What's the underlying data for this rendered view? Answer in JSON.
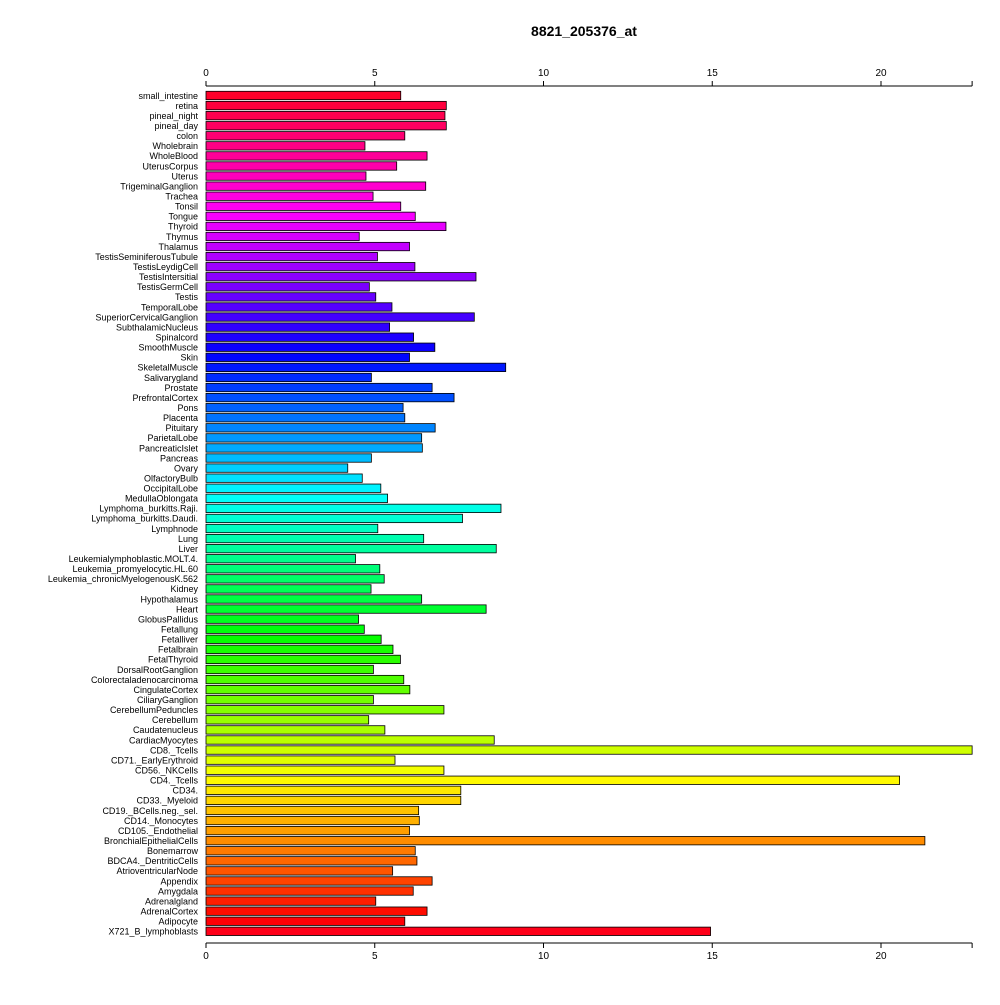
{
  "chart_data": {
    "type": "bar",
    "orientation": "horizontal",
    "title": "8821_205376_at",
    "xlabel": "",
    "ylabel": "",
    "xlim": [
      0,
      22.7
    ],
    "xticks": [
      0,
      5,
      10,
      15,
      20
    ],
    "grid": false,
    "categories": [
      "small_intestine",
      "retina",
      "pineal_night",
      "pineal_day",
      "colon",
      "Wholebrain",
      "WholeBlood",
      "UterusCorpus",
      "Uterus",
      "TrigeminalGanglion",
      "Trachea",
      "Tonsil",
      "Tongue",
      "Thyroid",
      "Thymus",
      "Thalamus",
      "TestisSeminiferousTubule",
      "TestisLeydigCell",
      "TestisIntersitial",
      "TestisGermCell",
      "Testis",
      "TemporalLobe",
      "SuperiorCervicalGanglion",
      "SubthalamicNucleus",
      "Spinalcord",
      "SmoothMuscle",
      "Skin",
      "SkeletalMuscle",
      "Salivarygland",
      "Prostate",
      "PrefrontalCortex",
      "Pons",
      "Placenta",
      "Pituitary",
      "ParietalLobe",
      "PancreaticIslet",
      "Pancreas",
      "Ovary",
      "OlfactoryBulb",
      "OccipitalLobe",
      "MedullaOblongata",
      "Lymphoma_burkitts.Raji.",
      "Lymphoma_burkitts.Daudi.",
      "Lymphnode",
      "Lung",
      "Liver",
      "Leukemialymphoblastic.MOLT.4.",
      "Leukemia_promyelocytic.HL.60",
      "Leukemia_chronicMyelogenousK.562",
      "Kidney",
      "Hypothalamus",
      "Heart",
      "GlobusPallidus",
      "Fetallung",
      "Fetalliver",
      "Fetalbrain",
      "FetalThyroid",
      "DorsalRootGanglion",
      "Colorectaladenocarcinoma",
      "CingulateCortex",
      "CiliaryGanglion",
      "CerebellumPeduncles",
      "Cerebellum",
      "Caudatenucleus",
      "CardiacMyocytes",
      "CD8._Tcells",
      "CD71._EarlyErythroid",
      "CD56._NKCells",
      "CD4._Tcells",
      "CD34.",
      "CD33._Myeloid",
      "CD19._BCells.neg._sel.",
      "CD14._Monocytes",
      "CD105._Endothelial",
      "BronchialEpithelialCells",
      "Bonemarrow",
      "BDCA4._DentriticCells",
      "AtrioventricularNode",
      "Appendix",
      "Amygdala",
      "Adrenalgland",
      "AdrenalCortex",
      "Adipocyte",
      "X721_B_lymphoblasts"
    ],
    "values": [
      5.77,
      7.12,
      7.08,
      7.12,
      5.89,
      4.71,
      6.55,
      5.65,
      4.74,
      6.51,
      4.95,
      5.77,
      6.2,
      7.11,
      4.54,
      6.03,
      5.08,
      6.19,
      8.0,
      4.84,
      5.03,
      5.51,
      7.95,
      5.44,
      6.15,
      6.78,
      6.03,
      8.88,
      4.9,
      6.7,
      7.35,
      5.84,
      5.89,
      6.79,
      6.39,
      6.41,
      4.9,
      4.2,
      4.63,
      5.18,
      5.38,
      8.74,
      7.6,
      5.09,
      6.45,
      8.6,
      4.43,
      5.15,
      5.28,
      4.89,
      6.39,
      8.3,
      4.52,
      4.69,
      5.19,
      5.54,
      5.76,
      4.96,
      5.86,
      6.04,
      4.96,
      7.05,
      4.82,
      5.3,
      8.54,
      22.7,
      5.6,
      7.05,
      20.55,
      7.55,
      7.55,
      6.3,
      6.32,
      6.03,
      21.3,
      6.2,
      6.25,
      5.53,
      6.7,
      6.14,
      5.03,
      6.55,
      5.89,
      14.95
    ],
    "color_scale": "rainbow (red → magenta → blue → cyan → green → yellow → orange → red)"
  }
}
